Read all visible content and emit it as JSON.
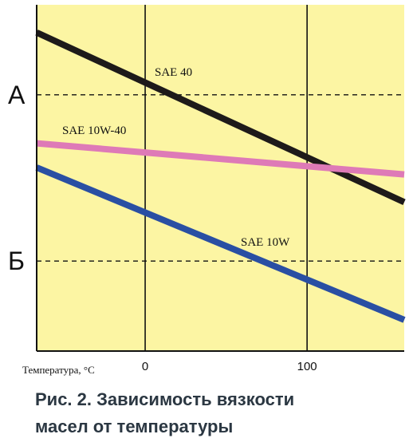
{
  "caption": {
    "line1": "Рис. 2. Зависимость вязкости",
    "line2": "масел от температуры"
  },
  "chart_data": {
    "type": "line",
    "title": "",
    "xlabel": "Температура, °С",
    "ylabel": "",
    "xlim": [
      -67,
      160
    ],
    "ylim": [
      0,
      100
    ],
    "x_ticks": [
      0,
      100
    ],
    "y_levels": [
      {
        "label": "А",
        "value": 74
      },
      {
        "label": "Б",
        "value": 26
      }
    ],
    "grid": true,
    "background": "#fcf5a3",
    "series": [
      {
        "name": "SAE 40",
        "color": "#1e1a1a",
        "x": [
          -67,
          160
        ],
        "y": [
          92,
          43
        ]
      },
      {
        "name": "SAE 10W-40",
        "color": "#de7ab7",
        "x": [
          -67,
          160
        ],
        "y": [
          60,
          51
        ]
      },
      {
        "name": "SAE 10W",
        "color": "#2a4fa3",
        "x": [
          -67,
          160
        ],
        "y": [
          53,
          9
        ]
      }
    ]
  }
}
